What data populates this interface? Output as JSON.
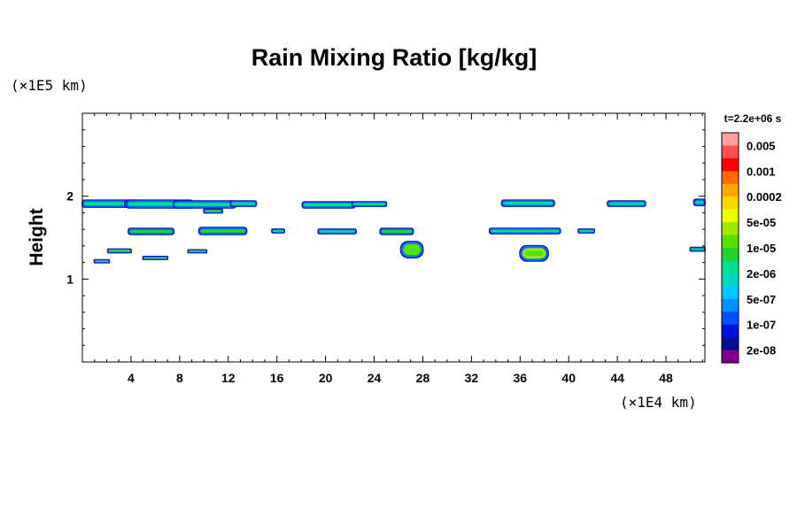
{
  "chart_data": {
    "type": "heatmap",
    "title": "Rain Mixing Ratio [kg/kg]",
    "xlabel": "",
    "ylabel": "Height",
    "x_unit_label": "(×1E4 km)",
    "y_unit_label": "(×1E5 km)",
    "time_label": "t=2.2e+06 s",
    "xlim": [
      0,
      51.2
    ],
    "ylim": [
      0,
      3.0
    ],
    "x_ticks": [
      4,
      8,
      12,
      16,
      20,
      24,
      28,
      32,
      36,
      40,
      44,
      48
    ],
    "x_tick_labels": [
      "4",
      "8",
      "12",
      "16",
      "20",
      "24",
      "28",
      "32",
      "36",
      "40",
      "44",
      "48"
    ],
    "y_ticks": [
      1,
      2
    ],
    "y_tick_labels": [
      "1",
      "2"
    ],
    "colorbar": {
      "labels": [
        "0.005",
        "0.001",
        "0.0002",
        "5e-05",
        "1e-05",
        "2e-06",
        "5e-07",
        "1e-07",
        "2e-08"
      ],
      "colors": [
        "#ffa0a0",
        "#ff5050",
        "#ff0000",
        "#ff6a00",
        "#ffa500",
        "#ffd700",
        "#e8ff00",
        "#9fe800",
        "#55e000",
        "#22d42a",
        "#00e08a",
        "#00d8c8",
        "#00c8ff",
        "#0090ff",
        "#0050ff",
        "#0010e0",
        "#001090",
        "#800090"
      ]
    },
    "regions": [
      {
        "x": [
          0,
          5
        ],
        "y": [
          1.87,
          1.95
        ],
        "level": 2
      },
      {
        "x": [
          3.5,
          5.2
        ],
        "y": [
          1.88,
          1.94
        ],
        "level": 2
      },
      {
        "x": [
          3.6,
          9.1
        ],
        "y": [
          1.86,
          1.95
        ],
        "level": 2
      },
      {
        "x": [
          7.5,
          12.6
        ],
        "y": [
          1.86,
          1.94
        ],
        "level": 2
      },
      {
        "x": [
          12.2,
          14.3
        ],
        "y": [
          1.88,
          1.94
        ],
        "level": 2
      },
      {
        "x": [
          18.1,
          22.4
        ],
        "y": [
          1.86,
          1.93
        ],
        "level": 2
      },
      {
        "x": [
          22.2,
          25.0
        ],
        "y": [
          1.88,
          1.93
        ],
        "level": 2
      },
      {
        "x": [
          34.5,
          38.8
        ],
        "y": [
          1.88,
          1.95
        ],
        "level": 2
      },
      {
        "x": [
          43.2,
          46.3
        ],
        "y": [
          1.88,
          1.94
        ],
        "level": 2
      },
      {
        "x": [
          50.3,
          51.2
        ],
        "y": [
          1.89,
          1.96
        ],
        "level": 2
      },
      {
        "x": [
          10.0,
          11.5
        ],
        "y": [
          1.8,
          1.84
        ],
        "level": 4
      },
      {
        "x": [
          3.8,
          7.5
        ],
        "y": [
          1.54,
          1.61
        ],
        "level": 3
      },
      {
        "x": [
          9.6,
          13.5
        ],
        "y": [
          1.54,
          1.62
        ],
        "level": 3
      },
      {
        "x": [
          15.6,
          16.6
        ],
        "y": [
          1.56,
          1.6
        ],
        "level": 2
      },
      {
        "x": [
          19.4,
          22.5
        ],
        "y": [
          1.55,
          1.6
        ],
        "level": 2
      },
      {
        "x": [
          24.5,
          27.2
        ],
        "y": [
          1.54,
          1.61
        ],
        "level": 3
      },
      {
        "x": [
          33.5,
          39.3
        ],
        "y": [
          1.55,
          1.61
        ],
        "level": 2
      },
      {
        "x": [
          40.8,
          42.1
        ],
        "y": [
          1.56,
          1.6
        ],
        "level": 2
      },
      {
        "x": [
          26.2,
          28.0
        ],
        "y": [
          1.26,
          1.45
        ],
        "level": 4
      },
      {
        "x": [
          36.0,
          38.3
        ],
        "y": [
          1.22,
          1.4
        ],
        "level": 5
      },
      {
        "x": [
          5.0,
          7.0
        ],
        "y": [
          1.24,
          1.27
        ],
        "level": 4
      },
      {
        "x": [
          1.0,
          2.2
        ],
        "y": [
          1.2,
          1.23
        ],
        "level": 4
      },
      {
        "x": [
          2.1,
          4.0
        ],
        "y": [
          1.32,
          1.36
        ],
        "level": 4
      },
      {
        "x": [
          8.7,
          10.2
        ],
        "y": [
          1.32,
          1.35
        ],
        "level": 4
      },
      {
        "x": [
          50.0,
          51.2
        ],
        "y": [
          1.34,
          1.38
        ],
        "level": 3
      }
    ]
  }
}
